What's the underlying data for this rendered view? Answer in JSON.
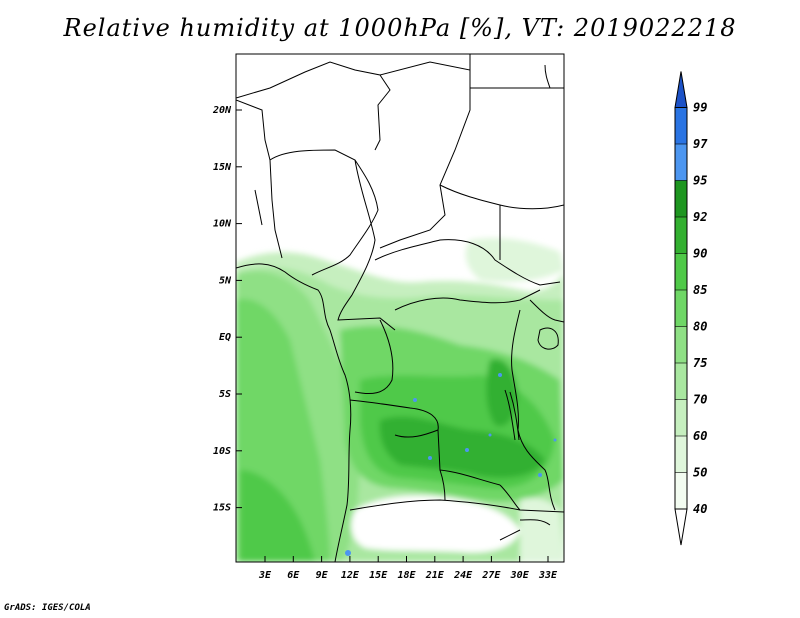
{
  "title": "Relative humidity at 1000hPa [%], VT: 2019022218",
  "credit": "GrADS: IGES/COLA",
  "map": {
    "lat_labels": [
      "20N",
      "15N",
      "10N",
      "5N",
      "EQ",
      "5S",
      "10S",
      "15S"
    ],
    "lon_labels": [
      "3E",
      "6E",
      "9E",
      "12E",
      "15E",
      "18E",
      "21E",
      "24E",
      "27E",
      "30E",
      "33E"
    ]
  },
  "colorbar": {
    "labels": [
      "40",
      "50",
      "60",
      "70",
      "75",
      "80",
      "85",
      "90",
      "92",
      "95",
      "97",
      "99"
    ],
    "colors": {
      "40-50": "#f3fcf1",
      "50-60": "#dff6db",
      "60-70": "#c6efbf",
      "70-75": "#a9e7a0",
      "75-80": "#8fe085",
      "80-85": "#6fd766",
      "85-90": "#4fc948",
      "90-92": "#33b030",
      "92-95": "#1e9620",
      "95-97": "#4c96f0",
      "97-99": "#2a74e3",
      "99+": "#1c52c7"
    }
  }
}
